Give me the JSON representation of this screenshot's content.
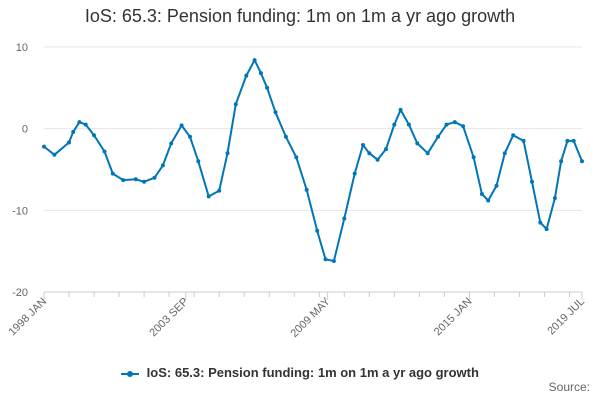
{
  "title": "IoS: 65.3: Pension funding: 1m on 1m a yr ago growth",
  "credits": "Source:",
  "colors": {
    "series": "#0076b6",
    "grid": "#e6e6e6",
    "axis_text": "#666666"
  },
  "chart_data": {
    "type": "line",
    "title": "IoS: 65.3: Pension funding: 1m on 1m a yr ago growth",
    "xlabel": "",
    "ylabel": "",
    "ylim": [
      -20,
      10
    ],
    "yticks": [
      10,
      0,
      -10,
      -20
    ],
    "xlim": [
      "1998-01",
      "2019-07"
    ],
    "xtick_labels": [
      "1998 JAN",
      "2003 SEP",
      "2009 MAY",
      "2015 JAN",
      "2019 JUL"
    ],
    "grid": true,
    "legend_position": "bottom",
    "series": [
      {
        "name": "IoS: 65.3: Pension funding: 1m on 1m a yr ago growth",
        "points": [
          [
            "1998-01",
            -2.2
          ],
          [
            "1998-06",
            -3.2
          ],
          [
            "1999-01",
            -1.7
          ],
          [
            "1999-03",
            -0.4
          ],
          [
            "1999-06",
            0.8
          ],
          [
            "1999-09",
            0.5
          ],
          [
            "2000-01",
            -0.8
          ],
          [
            "2000-06",
            -2.8
          ],
          [
            "2000-10",
            -5.5
          ],
          [
            "2001-03",
            -6.3
          ],
          [
            "2001-09",
            -6.2
          ],
          [
            "2002-01",
            -6.5
          ],
          [
            "2002-06",
            -6.0
          ],
          [
            "2002-10",
            -4.5
          ],
          [
            "2003-02",
            -1.8
          ],
          [
            "2003-07",
            0.4
          ],
          [
            "2003-11",
            -1.0
          ],
          [
            "2004-03",
            -4.0
          ],
          [
            "2004-08",
            -8.3
          ],
          [
            "2005-01",
            -7.6
          ],
          [
            "2005-05",
            -3.0
          ],
          [
            "2005-09",
            3.0
          ],
          [
            "2006-02",
            6.5
          ],
          [
            "2006-06",
            8.4
          ],
          [
            "2006-09",
            6.8
          ],
          [
            "2006-12",
            5.0
          ],
          [
            "2007-04",
            2.0
          ],
          [
            "2007-09",
            -1.0
          ],
          [
            "2008-02",
            -3.5
          ],
          [
            "2008-07",
            -7.5
          ],
          [
            "2008-12",
            -12.5
          ],
          [
            "2009-04",
            -16.0
          ],
          [
            "2009-08",
            -16.2
          ],
          [
            "2010-01",
            -11.0
          ],
          [
            "2010-06",
            -5.5
          ],
          [
            "2010-10",
            -2.0
          ],
          [
            "2011-01",
            -3.0
          ],
          [
            "2011-05",
            -3.8
          ],
          [
            "2011-09",
            -2.5
          ],
          [
            "2012-01",
            0.5
          ],
          [
            "2012-04",
            2.3
          ],
          [
            "2012-08",
            0.5
          ],
          [
            "2012-12",
            -1.8
          ],
          [
            "2013-05",
            -3.0
          ],
          [
            "2013-10",
            -1.0
          ],
          [
            "2014-02",
            0.5
          ],
          [
            "2014-06",
            0.8
          ],
          [
            "2014-10",
            0.3
          ],
          [
            "2015-03",
            -3.5
          ],
          [
            "2015-07",
            -8.0
          ],
          [
            "2015-10",
            -8.8
          ],
          [
            "2016-02",
            -7.0
          ],
          [
            "2016-06",
            -3.0
          ],
          [
            "2016-10",
            -0.8
          ],
          [
            "2017-03",
            -1.5
          ],
          [
            "2017-07",
            -6.5
          ],
          [
            "2017-11",
            -11.5
          ],
          [
            "2018-02",
            -12.3
          ],
          [
            "2018-06",
            -8.5
          ],
          [
            "2018-09",
            -4.0
          ],
          [
            "2018-12",
            -1.5
          ],
          [
            "2019-03",
            -1.5
          ],
          [
            "2019-07",
            -4.0
          ]
        ]
      }
    ]
  }
}
